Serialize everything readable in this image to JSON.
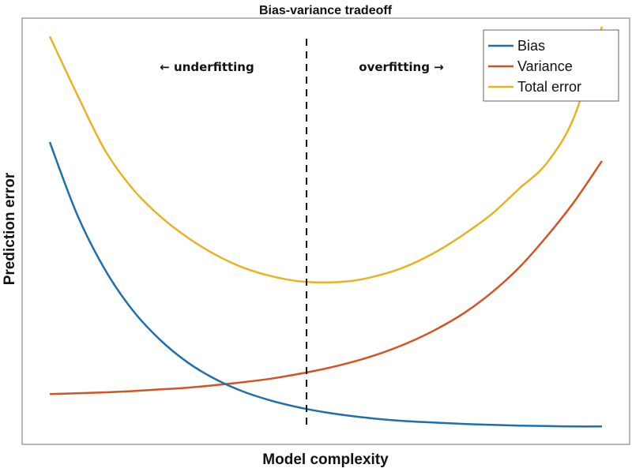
{
  "chart_data": {
    "type": "line",
    "title": "Bias-variance tradeoff",
    "xlabel": "Model complexity",
    "ylabel": "Prediction error",
    "xlim": [
      -0.5,
      10.5
    ],
    "ylim": [
      0,
      100
    ],
    "grid": false,
    "ticks": false,
    "legend_placement": "top-right",
    "x": [
      0,
      0.5,
      1,
      1.5,
      2,
      2.5,
      3,
      3.5,
      4,
      4.5,
      5,
      5.5,
      6,
      6.5,
      7,
      7.5,
      8,
      8.5,
      9,
      9.5,
      10
    ],
    "series": [
      {
        "name": "Bias",
        "color": "#1f6fae",
        "values": [
          70.9,
          53.8,
          41.0,
          31.5,
          24.5,
          19.2,
          15.3,
          12.4,
          10.3,
          8.7,
          7.5,
          6.6,
          5.9,
          5.4,
          5.1,
          4.8,
          4.6,
          4.4,
          4.3,
          4.2,
          4.2
        ]
      },
      {
        "name": "Variance",
        "color": "#d35322",
        "values": [
          11.8,
          12.0,
          12.2,
          12.5,
          12.9,
          13.3,
          13.9,
          14.6,
          15.4,
          16.5,
          17.8,
          19.4,
          21.4,
          23.9,
          27.0,
          30.8,
          35.6,
          41.5,
          48.8,
          57.0,
          66.5
        ]
      },
      {
        "name": "Total error",
        "color": "#e8b320",
        "values": [
          95.7,
          82,
          69,
          60,
          53.5,
          48.5,
          44.5,
          41.5,
          39.5,
          38.3,
          38,
          38.4,
          39.8,
          42,
          45.2,
          49.3,
          54,
          60,
          66,
          77,
          98
        ]
      }
    ],
    "vline": {
      "x": 4.65,
      "style": "dashed",
      "color": "#111111"
    },
    "annotations": {
      "left": "←  underfitting",
      "right": "overfitting  →"
    }
  }
}
